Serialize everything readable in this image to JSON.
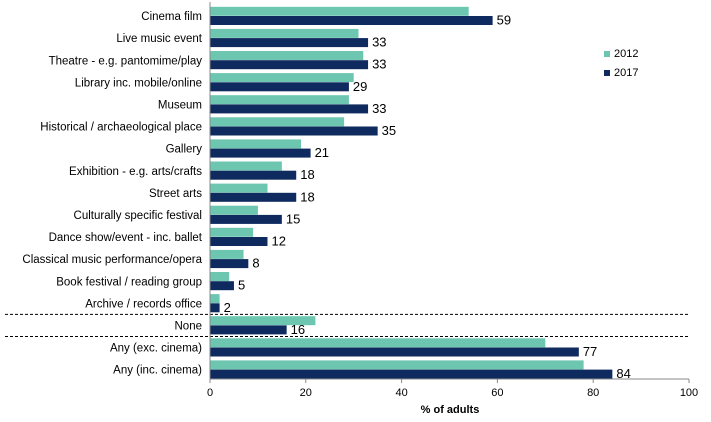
{
  "chart_data": {
    "type": "bar",
    "orientation": "horizontal",
    "categories": [
      "Cinema film",
      "Live music event",
      "Theatre - e.g. pantomime/play",
      "Library inc. mobile/online",
      "Museum",
      "Historical / archaeological place",
      "Gallery",
      "Exhibition - e.g. arts/crafts",
      "Street arts",
      "Culturally specific festival",
      "Dance show/event - inc. ballet",
      "Classical music performance/opera",
      "Book festival / reading group",
      "Archive / records office",
      "None",
      "Any (exc. cinema)",
      "Any (inc. cinema)"
    ],
    "series": [
      {
        "name": "2012",
        "color": "#6cc6b0",
        "values": [
          54,
          31,
          32,
          30,
          29,
          28,
          19,
          15,
          12,
          10,
          9,
          7,
          4,
          2,
          22,
          70,
          78
        ]
      },
      {
        "name": "2017",
        "color": "#0f2a5e",
        "values": [
          59,
          33,
          33,
          29,
          33,
          35,
          21,
          18,
          18,
          15,
          12,
          8,
          5,
          2,
          16,
          77,
          84
        ]
      }
    ],
    "data_labels_series": "2017",
    "xlabel": "% of adults",
    "xlim": [
      0,
      100
    ],
    "xticks": [
      0,
      20,
      40,
      60,
      80,
      100
    ],
    "grid": false,
    "legend": "right",
    "dividers_after": [
      "Archive / records office",
      "None"
    ]
  }
}
